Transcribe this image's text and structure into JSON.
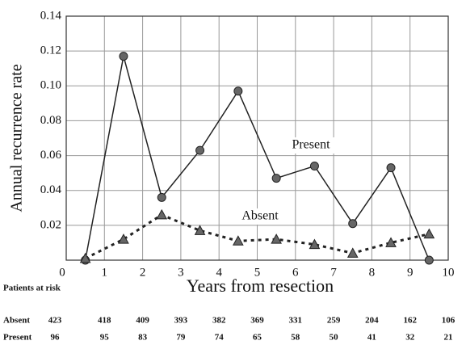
{
  "chart_data": {
    "type": "line",
    "ylabel": "Annual recurrence rate",
    "xlabel": "Years from resection",
    "x": [
      0.5,
      1.5,
      2.5,
      3.5,
      4.5,
      5.5,
      6.5,
      7.5,
      8.5,
      9.5
    ],
    "series": [
      {
        "name": "Present",
        "color": "#222222",
        "dash": "solid",
        "marker": "circle",
        "values": [
          0,
          0.117,
          0.036,
          0.063,
          0.097,
          0.047,
          0.054,
          0.021,
          0.053,
          0
        ]
      },
      {
        "name": "Absent",
        "color": "#222222",
        "dash": "dotted",
        "marker": "triangle",
        "values": [
          0.001,
          0.012,
          0.026,
          0.017,
          0.011,
          0.012,
          0.009,
          0.004,
          0.01,
          0.015
        ]
      }
    ],
    "xlim": [
      0,
      10
    ],
    "xticks": [
      0,
      1,
      2,
      3,
      4,
      5,
      6,
      7,
      8,
      9,
      10
    ],
    "ylim": [
      0,
      0.14
    ],
    "yticks": [
      0.02,
      0.04,
      0.06,
      0.08,
      {
        "value": 0.1,
        "label": "0.10"
      },
      0.12,
      0.14
    ],
    "grid": true
  },
  "table": {
    "title": "Patients at risk",
    "rows": [
      {
        "name": "Absent",
        "values": [
          "423",
          "418",
          "409",
          "393",
          "382",
          "369",
          "331",
          "259",
          "204",
          "162",
          "106"
        ]
      },
      {
        "name": "Present",
        "values": [
          "96",
          "95",
          "83",
          "79",
          "74",
          "65",
          "58",
          "50",
          "41",
          "32",
          "21"
        ]
      }
    ]
  }
}
